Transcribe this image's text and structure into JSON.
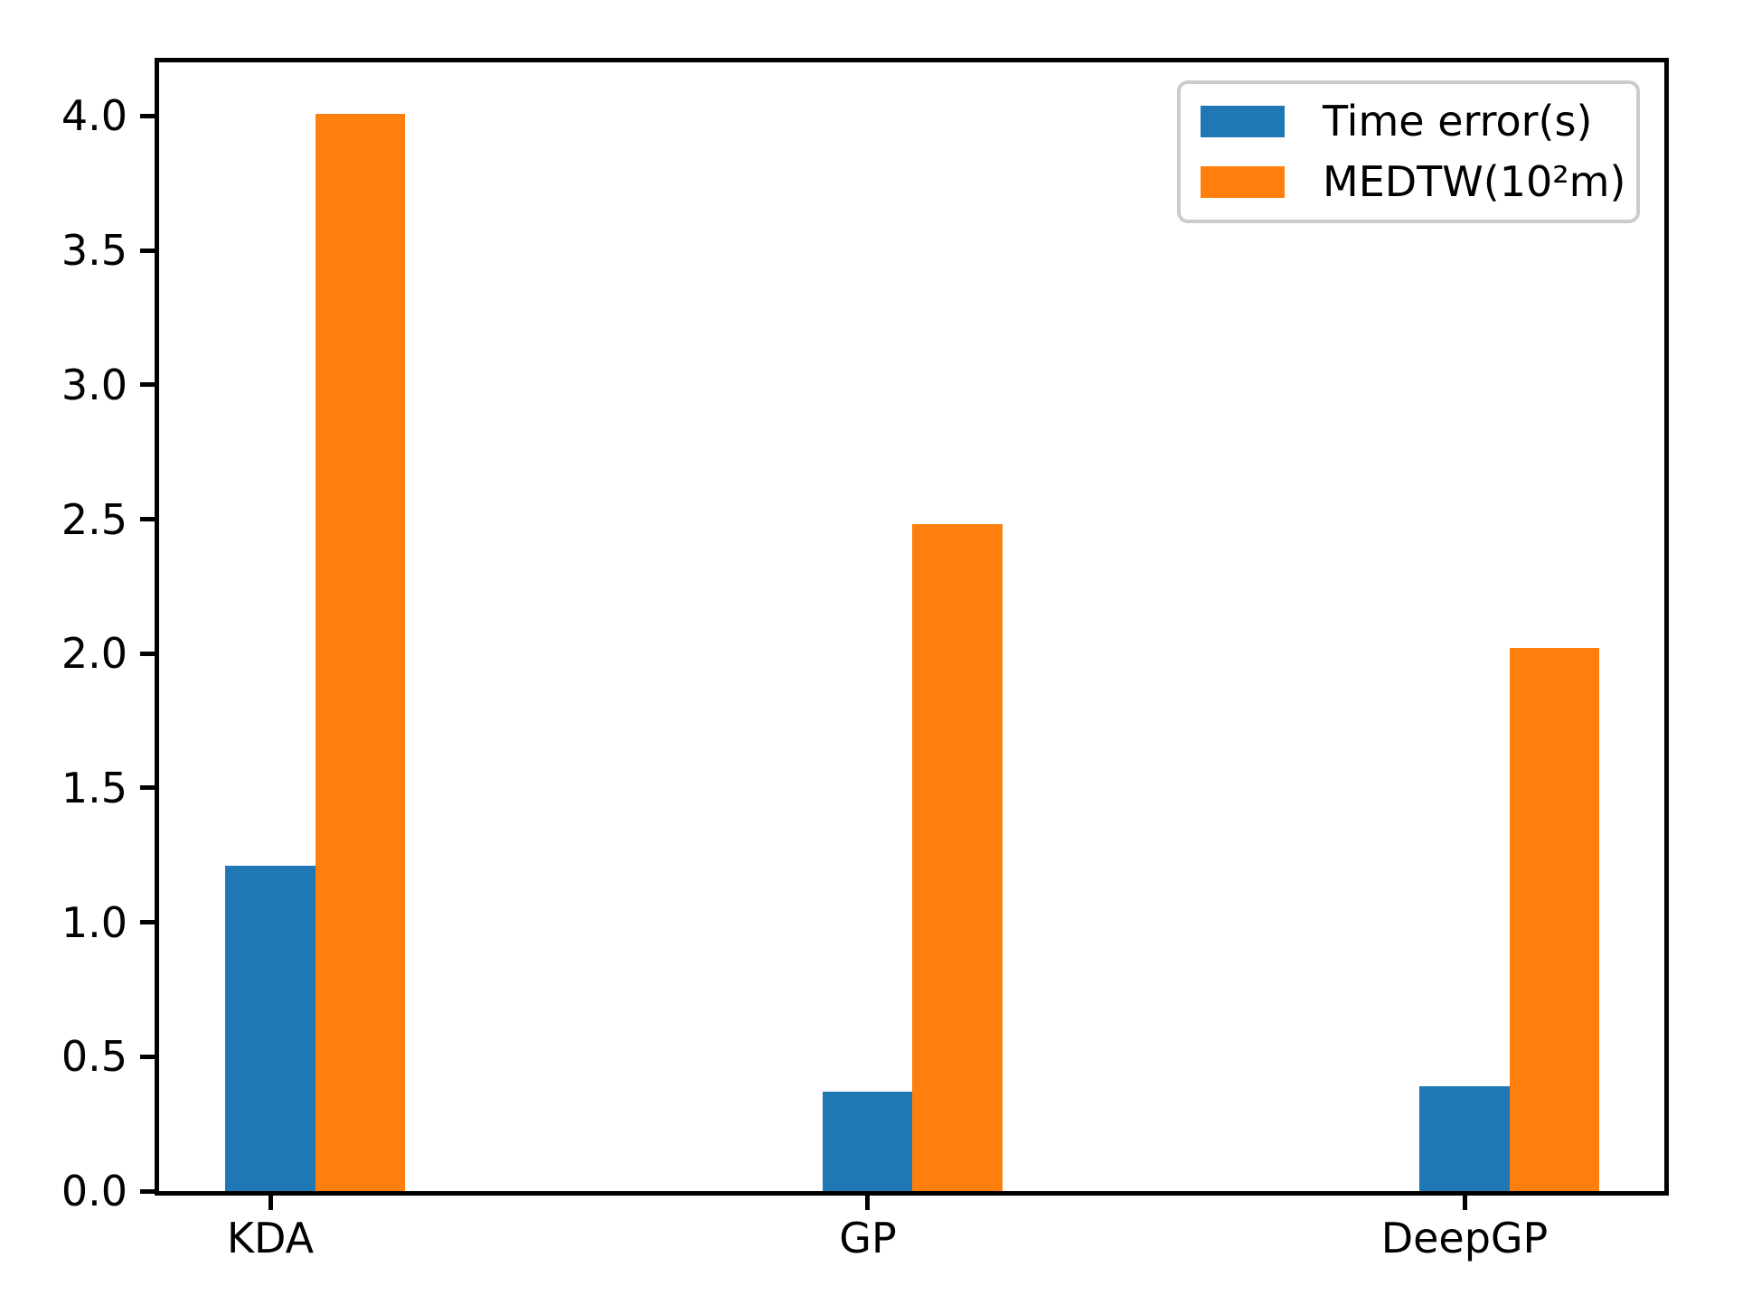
{
  "figure": {
    "background": "#ffffff",
    "axis_color": "#000000"
  },
  "chart_data": {
    "type": "bar",
    "title": "",
    "xlabel": "",
    "ylabel": "",
    "categories": [
      "KDA",
      "GP",
      "DeepGP"
    ],
    "series": [
      {
        "name": "Time error(s)",
        "color": "#1f77b4",
        "values": [
          1.21,
          0.37,
          0.39
        ]
      },
      {
        "name": "MEDTW(10²m)",
        "color": "#ff7f0e",
        "values": [
          4.01,
          2.48,
          2.02
        ]
      }
    ],
    "ylim": [
      0,
      4.2
    ],
    "yticks": [
      0,
      0.5,
      1,
      1.5,
      2,
      2.5,
      3,
      3.5,
      4
    ],
    "ytick_labels": [
      "0.0",
      "0.5",
      "1.0",
      "1.5",
      "2.0",
      "2.5",
      "3.0",
      "3.5",
      "4.0"
    ],
    "grid": false,
    "legend": {
      "position": "upper right"
    }
  }
}
